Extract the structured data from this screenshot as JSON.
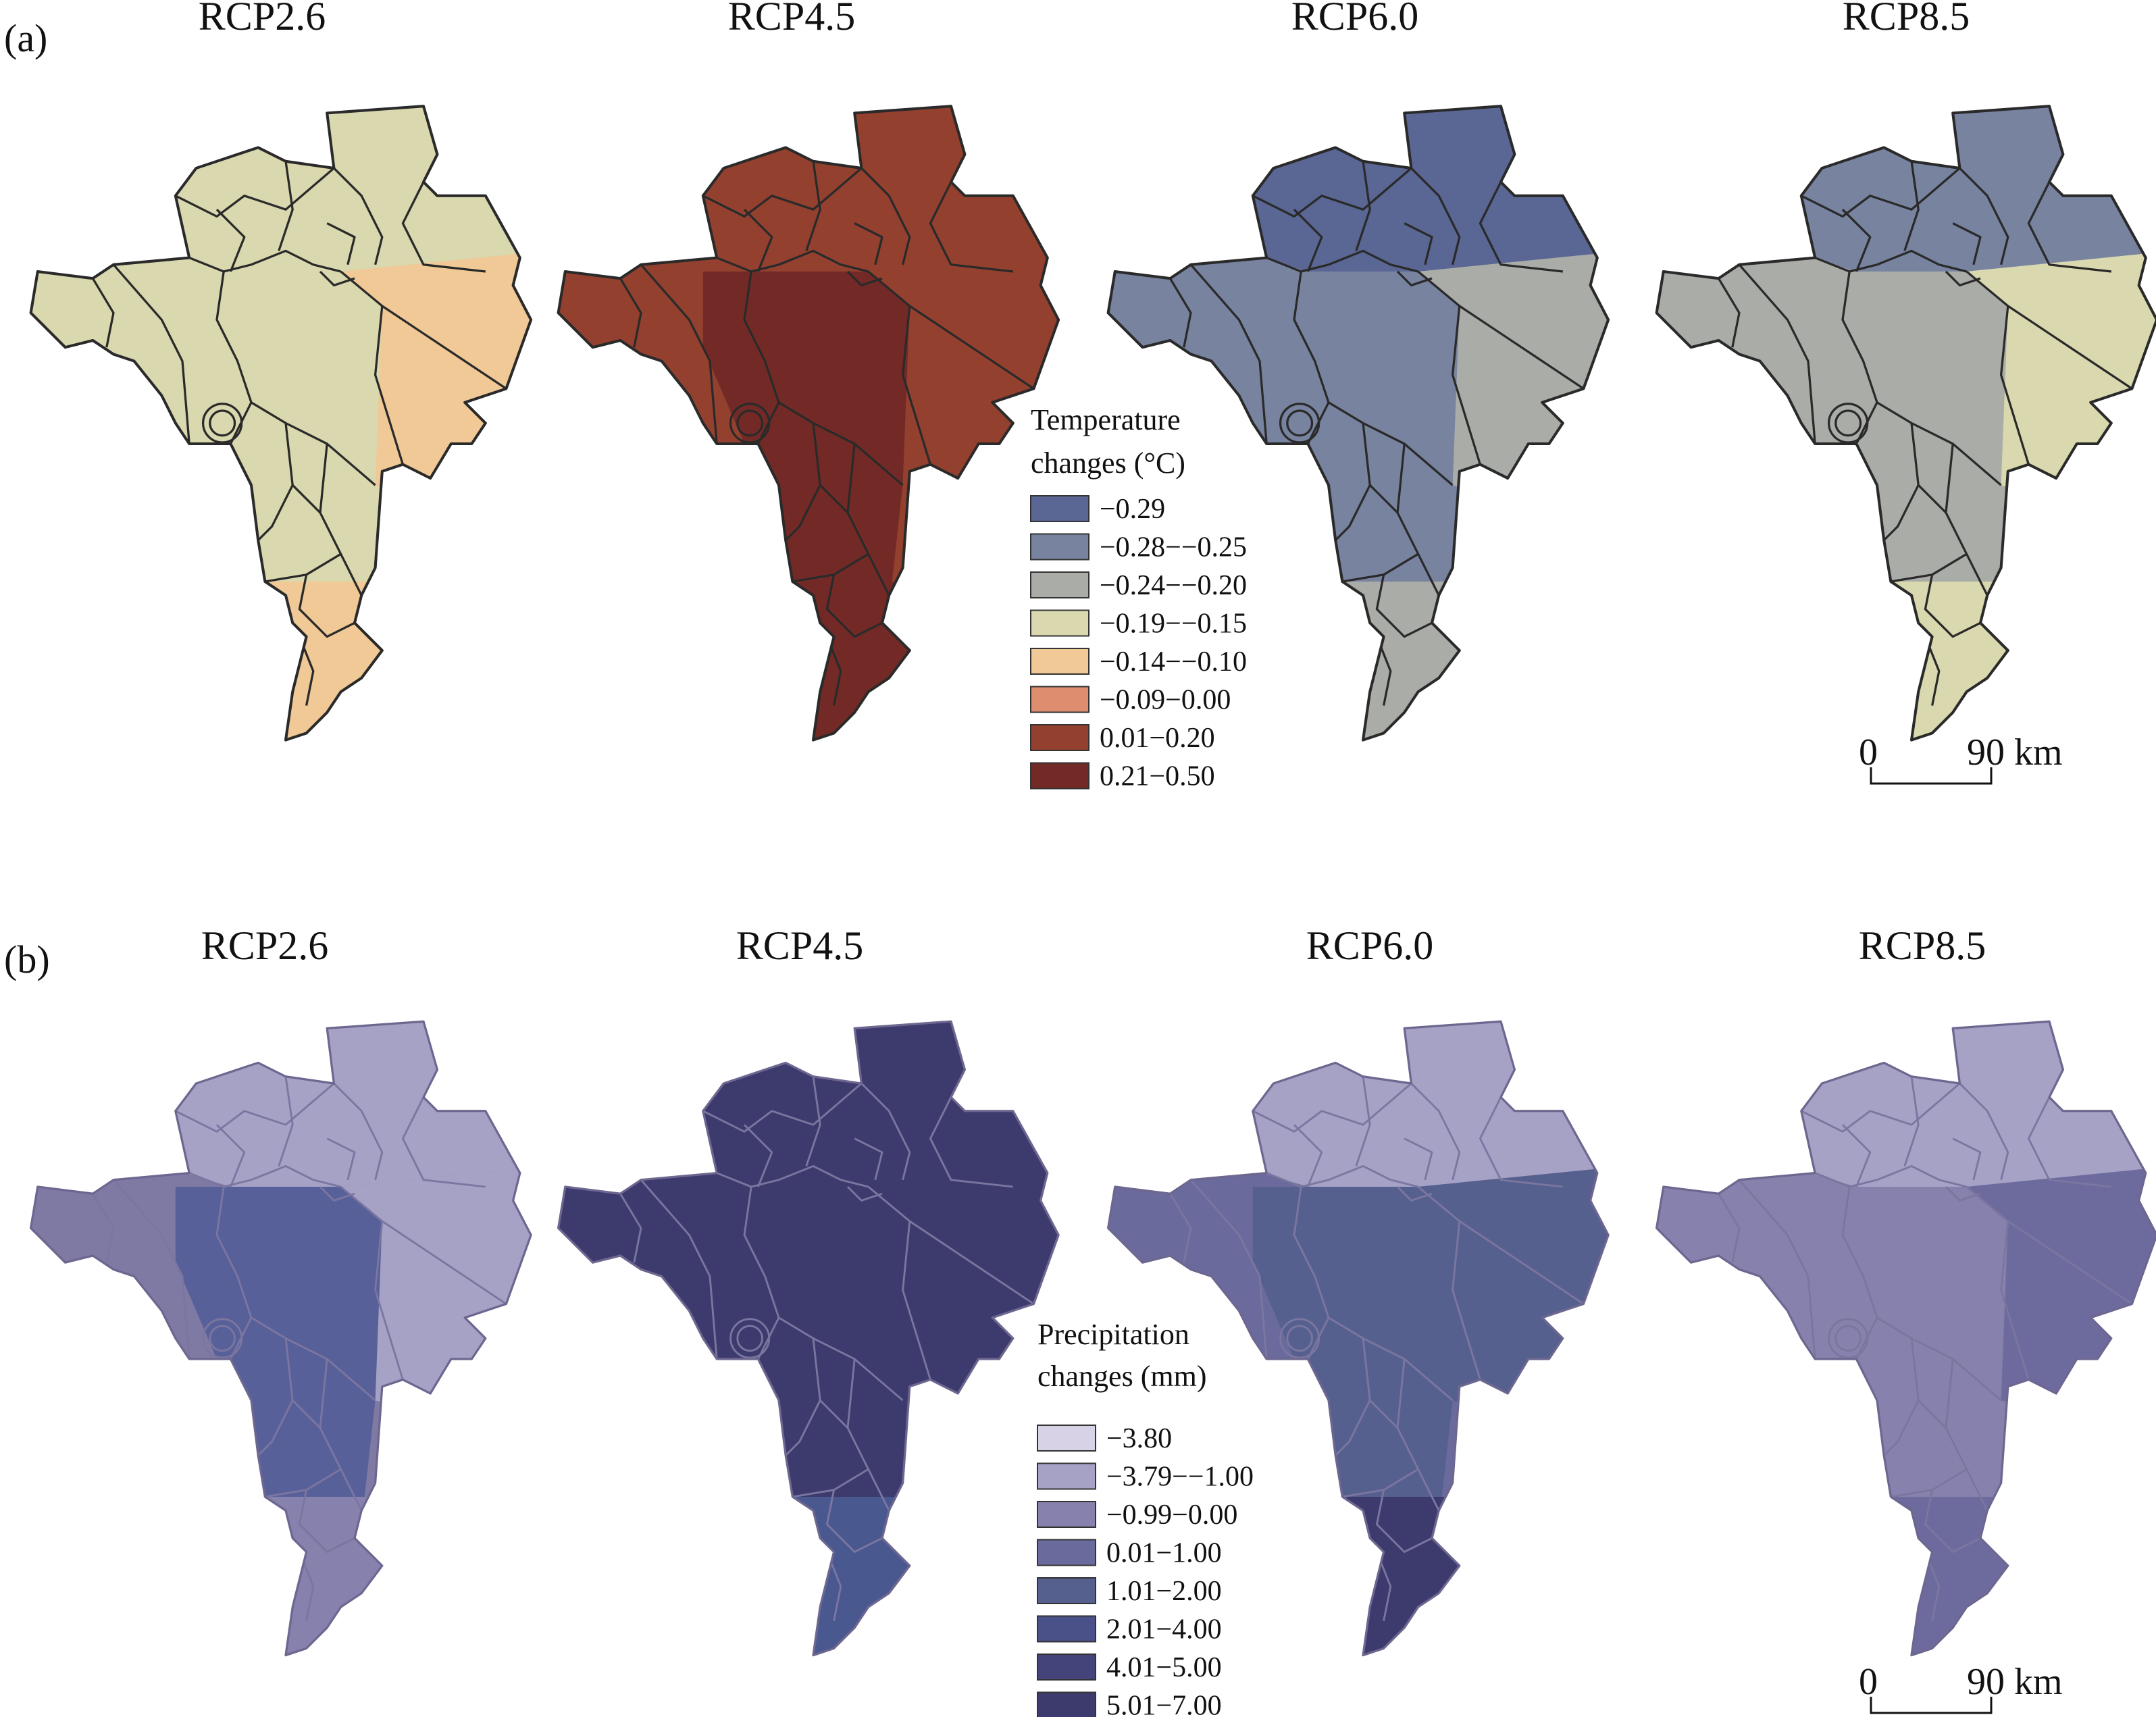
{
  "panels": [
    {
      "label": "(a)",
      "scenarios": [
        {
          "title": "RCP2.6",
          "base": "#d9d8ae",
          "alt": "#f0c996",
          "north": "#d9d8ae",
          "center": "#d9d8ae",
          "east": "#f0c996",
          "south": "#f0c996"
        },
        {
          "title": "RCP4.5",
          "base": "#94402f",
          "alt": "#732a26",
          "north": "#94402f",
          "center": "#732a26",
          "east": "#94402f",
          "south": "#732a26"
        },
        {
          "title": "RCP6.0",
          "base": "#7883a0",
          "alt": "#aaaca8",
          "north": "#5a6795",
          "center": "#7883a0",
          "east": "#aaaca8",
          "south": "#aaaca8"
        },
        {
          "title": "RCP8.5",
          "base": "#aaaca8",
          "alt": "#d9d8ae",
          "north": "#7883a0",
          "center": "#aaaca8",
          "east": "#d9d8ae",
          "south": "#d9d8ae"
        }
      ],
      "legend": {
        "title_line1": "Temperature",
        "title_line2": "changes (°C)",
        "items": [
          {
            "label": "−0.29",
            "color": "#5a6795"
          },
          {
            "label": "−0.28−−0.25",
            "color": "#7883a0"
          },
          {
            "label": "−0.24−−0.20",
            "color": "#aaaca8"
          },
          {
            "label": "−0.19−−0.15",
            "color": "#d9d8ae"
          },
          {
            "label": "−0.14−−0.10",
            "color": "#f0c996"
          },
          {
            "label": "−0.09−0.00",
            "color": "#de8d6e"
          },
          {
            "label": "0.01−0.20",
            "color": "#94402f"
          },
          {
            "label": "0.21−0.50",
            "color": "#732a26"
          }
        ]
      },
      "scale_bar": {
        "start": "0",
        "end": "90 km"
      }
    },
    {
      "label": "(b)",
      "scenarios": [
        {
          "title": "RCP2.6",
          "base": "#7e7aa4",
          "alt": "#4c5890",
          "north": "#a6a2c6",
          "center": "#58609a",
          "east": "#a6a2c6",
          "south": "#8682ad"
        },
        {
          "title": "RCP4.5",
          "base": "#3d3a6d",
          "alt": "#4a5088",
          "north": "#3d3a6d",
          "center": "#3d3a6d",
          "east": "#3d3a6d",
          "south": "#4a5890"
        },
        {
          "title": "RCP6.0",
          "base": "#6a6a9c",
          "alt": "#56608f",
          "north": "#a6a2c6",
          "center": "#56608f",
          "east": "#56608f",
          "south": "#3d3a6d"
        },
        {
          "title": "RCP8.5",
          "base": "#8682ad",
          "alt": "#6d6b9e",
          "north": "#a6a2c6",
          "center": "#8682ad",
          "east": "#6d6b9e",
          "south": "#6d6b9e"
        }
      ],
      "legend": {
        "title_line1": "Precipitation",
        "title_line2": "changes (mm)",
        "items": [
          {
            "label": "−3.80",
            "color": "#d7d2e6"
          },
          {
            "label": "−3.79−−1.00",
            "color": "#a6a2c6"
          },
          {
            "label": "−0.99−0.00",
            "color": "#8682ad"
          },
          {
            "label": "0.01−1.00",
            "color": "#6a6a9c"
          },
          {
            "label": "1.01−2.00",
            "color": "#56608f"
          },
          {
            "label": "2.01−4.00",
            "color": "#4a5088"
          },
          {
            "label": "4.01−5.00",
            "color": "#44437a"
          },
          {
            "label": "5.01−7.00",
            "color": "#3d3a6d"
          }
        ]
      },
      "scale_bar": {
        "start": "0",
        "end": "90 km"
      }
    }
  ]
}
